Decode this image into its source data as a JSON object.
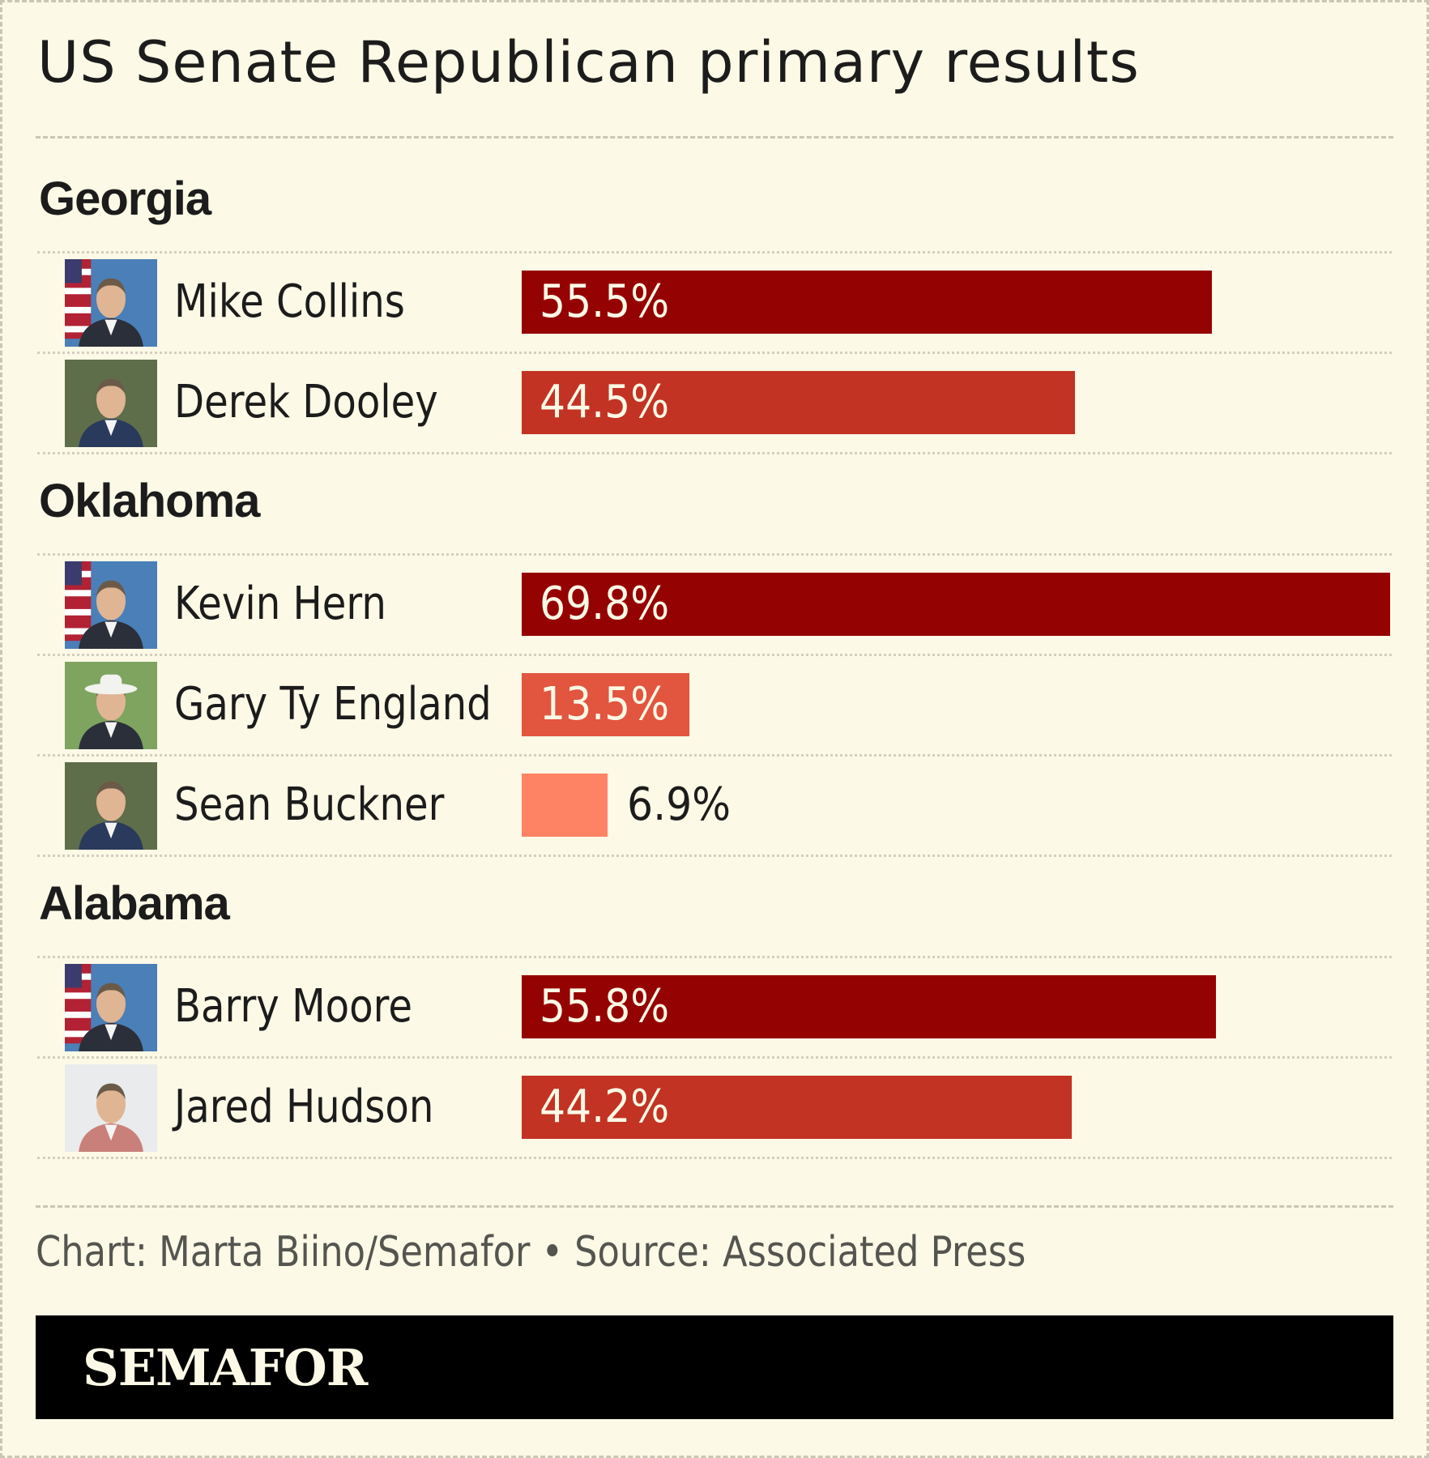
{
  "title": "US Senate Republican primary results",
  "chart_data": {
    "type": "bar",
    "orientation": "horizontal",
    "unit": "%",
    "xlim": [
      0,
      69.8
    ],
    "groups": [
      {
        "state": "Georgia",
        "candidates": [
          {
            "name": "Mike Collins",
            "value": 55.5,
            "label": "55.5%",
            "color": "#950202",
            "photo": "portrait-with-flag"
          },
          {
            "name": "Derek Dooley",
            "value": 44.5,
            "label": "44.5%",
            "color": "#c23323",
            "photo": "portrait-outdoor"
          }
        ]
      },
      {
        "state": "Oklahoma",
        "candidates": [
          {
            "name": "Kevin Hern",
            "value": 69.8,
            "label": "69.8%",
            "color": "#950202",
            "photo": "portrait-with-flag"
          },
          {
            "name": "Gary Ty England",
            "value": 13.5,
            "label": "13.5%",
            "color": "#e2553f",
            "photo": "portrait-cowboy-hat"
          },
          {
            "name": "Sean Buckner",
            "value": 6.9,
            "label": "6.9%",
            "color": "#fd8364",
            "photo": "portrait-outdoor"
          }
        ]
      },
      {
        "state": "Alabama",
        "candidates": [
          {
            "name": "Barry Moore",
            "value": 55.8,
            "label": "55.8%",
            "color": "#950202",
            "photo": "portrait-with-flag"
          },
          {
            "name": "Jared Hudson",
            "value": 44.2,
            "label": "44.2%",
            "color": "#c23323",
            "photo": "portrait-casual"
          }
        ]
      }
    ]
  },
  "credit": "Chart: Marta Biino/Semafor • Source: Associated Press",
  "footer": {
    "logo": "SEMAFOR"
  }
}
